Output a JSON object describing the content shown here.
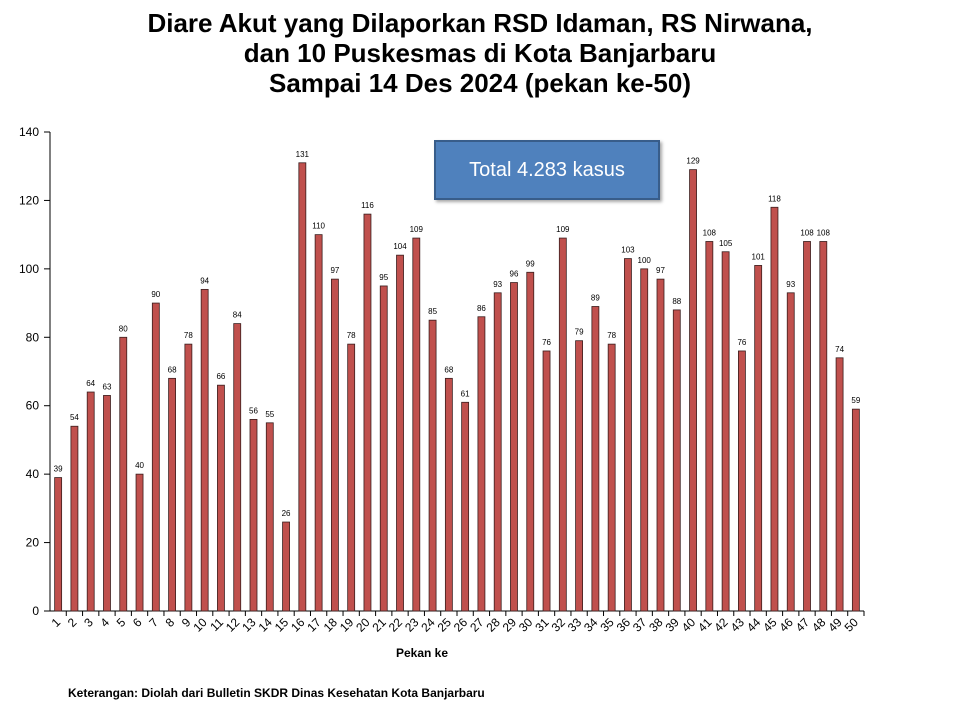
{
  "title_lines": [
    "Diare Akut yang Dilaporkan RSD Idaman, RS Nirwana,",
    "dan 10 Puskesmas di Kota Banjarbaru",
    "Sampai 14 Des 2024 (pekan ke-50)"
  ],
  "total_box": "Total 4.283 kasus",
  "note": "Keterangan: Diolah dari Bulletin SKDR Dinas Kesehatan Kota Banjarbaru",
  "colors": {
    "bar_fill": "#c0504d",
    "bar_stroke": "#3a1e1e",
    "box_fill": "#4f81bd"
  },
  "chart_data": {
    "type": "bar",
    "xlabel": "Pekan ke",
    "ylabel": "",
    "ylim": [
      0,
      140
    ],
    "yticks": [
      0,
      20,
      40,
      60,
      80,
      100,
      120,
      140
    ],
    "grid": false,
    "categories": [
      "1",
      "2",
      "3",
      "4",
      "5",
      "6",
      "7",
      "8",
      "9",
      "10",
      "11",
      "12",
      "13",
      "14",
      "15",
      "16",
      "17",
      "18",
      "19",
      "20",
      "21",
      "22",
      "23",
      "24",
      "25",
      "26",
      "27",
      "28",
      "29",
      "30",
      "31",
      "32",
      "33",
      "34",
      "35",
      "36",
      "37",
      "38",
      "39",
      "40",
      "41",
      "42",
      "43",
      "44",
      "45",
      "46",
      "47",
      "48",
      "49",
      "50"
    ],
    "values": [
      39,
      54,
      64,
      63,
      80,
      40,
      90,
      68,
      78,
      94,
      66,
      84,
      56,
      55,
      26,
      131,
      110,
      97,
      78,
      116,
      95,
      104,
      109,
      85,
      68,
      61,
      86,
      93,
      96,
      99,
      76,
      109,
      79,
      89,
      78,
      103,
      100,
      97,
      88,
      129,
      108,
      105,
      76,
      101,
      118,
      93,
      108,
      108,
      74,
      59
    ]
  }
}
